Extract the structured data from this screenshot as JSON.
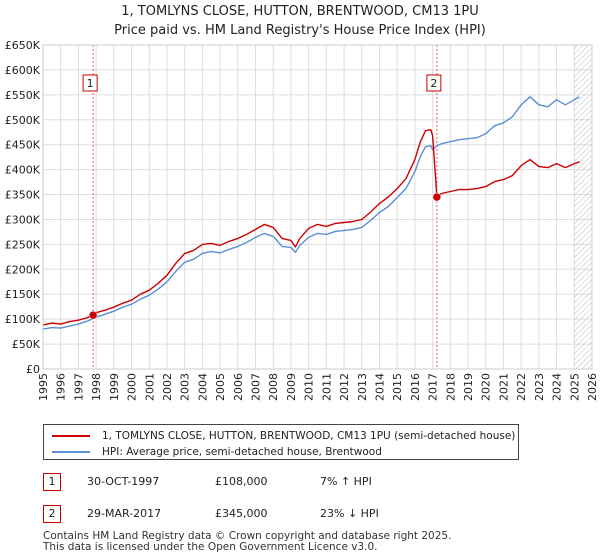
{
  "chart_data": {
    "type": "line",
    "title": "1, TOMLYNS CLOSE, HUTTON, BRENTWOOD, CM13 1PU",
    "subtitle": "Price paid vs. HM Land Registry's House Price Index (HPI)",
    "xlabel": "",
    "ylabel": "",
    "xlim": [
      1995,
      2026
    ],
    "ylim": [
      0,
      650000
    ],
    "x_ticks": [
      "1995",
      "1996",
      "1997",
      "1998",
      "1999",
      "2000",
      "2001",
      "2002",
      "2003",
      "2004",
      "2005",
      "2006",
      "2007",
      "2008",
      "2009",
      "2010",
      "2011",
      "2012",
      "2013",
      "2014",
      "2015",
      "2016",
      "2017",
      "2018",
      "2019",
      "2020",
      "2021",
      "2022",
      "2023",
      "2024",
      "2025",
      "2026"
    ],
    "y_ticks": [
      "£0",
      "£50K",
      "£100K",
      "£150K",
      "£200K",
      "£250K",
      "£300K",
      "£350K",
      "£400K",
      "£450K",
      "£500K",
      "£550K",
      "£600K",
      "£650K"
    ],
    "y_tick_values": [
      0,
      50000,
      100000,
      150000,
      200000,
      250000,
      300000,
      350000,
      400000,
      450000,
      500000,
      550000,
      600000,
      650000
    ],
    "grid": true,
    "series": [
      {
        "name": "1, TOMLYNS CLOSE, HUTTON, BRENTWOOD, CM13 1PU (semi-detached house)",
        "color": "#cc0000",
        "x": [
          1995.0,
          1995.5,
          1996.0,
          1996.5,
          1997.0,
          1997.5,
          1997.83,
          1998.0,
          1998.5,
          1999.0,
          1999.5,
          2000.0,
          2000.5,
          2001.0,
          2001.5,
          2002.0,
          2002.5,
          2003.0,
          2003.5,
          2004.0,
          2004.5,
          2005.0,
          2005.5,
          2006.0,
          2006.5,
          2007.0,
          2007.5,
          2008.0,
          2008.5,
          2009.0,
          2009.25,
          2009.5,
          2010.0,
          2010.5,
          2011.0,
          2011.5,
          2012.0,
          2012.5,
          2013.0,
          2013.5,
          2014.0,
          2014.5,
          2015.0,
          2015.5,
          2016.0,
          2016.3,
          2016.6,
          2016.9,
          2017.0,
          2017.24,
          2017.5,
          2018.0,
          2018.5,
          2019.0,
          2019.5,
          2020.0,
          2020.5,
          2021.0,
          2021.5,
          2022.0,
          2022.5,
          2023.0,
          2023.5,
          2024.0,
          2024.5,
          2025.0,
          2025.3
        ],
        "values": [
          88000,
          92000,
          90000,
          95000,
          98000,
          103000,
          108000,
          113000,
          118000,
          124000,
          132000,
          138000,
          150000,
          158000,
          172000,
          188000,
          212000,
          232000,
          238000,
          250000,
          252000,
          248000,
          256000,
          262000,
          270000,
          280000,
          290000,
          284000,
          262000,
          258000,
          245000,
          262000,
          282000,
          290000,
          286000,
          292000,
          294000,
          296000,
          300000,
          315000,
          332000,
          345000,
          362000,
          382000,
          420000,
          455000,
          478000,
          480000,
          468000,
          345000,
          352000,
          356000,
          360000,
          360000,
          362000,
          366000,
          376000,
          380000,
          388000,
          408000,
          420000,
          406000,
          404000,
          412000,
          404000,
          412000,
          416000
        ]
      },
      {
        "name": "HPI: Average price, semi-detached house, Brentwood",
        "color": "#5b8fd4",
        "x": [
          1995.0,
          1995.5,
          1996.0,
          1996.5,
          1997.0,
          1997.5,
          1997.83,
          1998.0,
          1998.5,
          1999.0,
          1999.5,
          2000.0,
          2000.5,
          2001.0,
          2001.5,
          2002.0,
          2002.5,
          2003.0,
          2003.5,
          2004.0,
          2004.5,
          2005.0,
          2005.5,
          2006.0,
          2006.5,
          2007.0,
          2007.5,
          2008.0,
          2008.5,
          2009.0,
          2009.25,
          2009.5,
          2010.0,
          2010.5,
          2011.0,
          2011.5,
          2012.0,
          2012.5,
          2013.0,
          2013.5,
          2014.0,
          2014.5,
          2015.0,
          2015.5,
          2016.0,
          2016.3,
          2016.6,
          2016.9,
          2017.0,
          2017.24,
          2017.5,
          2018.0,
          2018.5,
          2019.0,
          2019.5,
          2020.0,
          2020.5,
          2021.0,
          2021.5,
          2022.0,
          2022.5,
          2023.0,
          2023.5,
          2024.0,
          2024.5,
          2025.0,
          2025.3
        ],
        "values": [
          80000,
          83000,
          82000,
          86000,
          90000,
          96000,
          101000,
          104000,
          110000,
          116000,
          124000,
          130000,
          140000,
          148000,
          160000,
          175000,
          196000,
          214000,
          220000,
          232000,
          236000,
          233000,
          240000,
          246000,
          254000,
          264000,
          272000,
          266000,
          246000,
          244000,
          234000,
          248000,
          264000,
          272000,
          270000,
          276000,
          278000,
          280000,
          284000,
          298000,
          314000,
          326000,
          344000,
          362000,
          396000,
          426000,
          446000,
          448000,
          440000,
          448000,
          452000,
          456000,
          460000,
          462000,
          464000,
          472000,
          488000,
          494000,
          506000,
          530000,
          546000,
          530000,
          526000,
          540000,
          530000,
          540000,
          546000
        ]
      }
    ],
    "annotations": [
      {
        "label": "1",
        "x": 1997.83,
        "y": 108000
      },
      {
        "label": "2",
        "x": 2017.24,
        "y": 345000
      }
    ],
    "hatched_region_start": 2025.0
  },
  "legend": {
    "red_label": "1, TOMLYNS CLOSE, HUTTON, BRENTWOOD, CM13 1PU (semi-detached house)",
    "blue_label": "HPI: Average price, semi-detached house, Brentwood"
  },
  "transactions": [
    {
      "id": "1",
      "date": "30-OCT-1997",
      "price": "£108,000",
      "hpi": "7% ↑ HPI"
    },
    {
      "id": "2",
      "date": "29-MAR-2017",
      "price": "£345,000",
      "hpi": "23% ↓ HPI"
    }
  ],
  "footer": "Contains HM Land Registry data © Crown copyright and database right 2025.\nThis data is licensed under the Open Government Licence v3.0."
}
